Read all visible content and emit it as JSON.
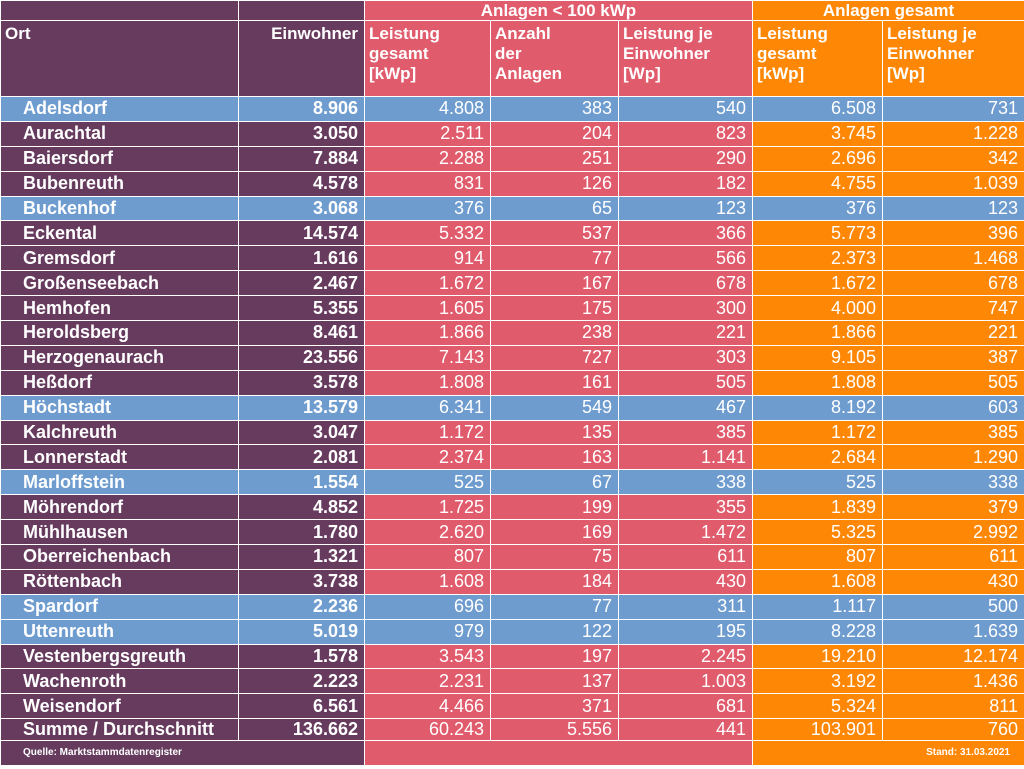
{
  "header": {
    "group_small": "Anlagen < 100 kWp",
    "group_total": "Anlagen gesamt",
    "col_ort": "Ort",
    "col_einwohner": "Einwohner",
    "col_small_leistung": [
      "Leistung",
      "gesamt",
      "[kWp]"
    ],
    "col_small_anzahl": [
      "Anzahl",
      "der",
      "Anlagen"
    ],
    "col_small_jeew": [
      "Leistung je",
      "Einwohner",
      "[Wp]"
    ],
    "col_total_leistung": [
      "Leistung",
      "gesamt",
      "[kWp]"
    ],
    "col_total_jeew": [
      "Leistung je",
      "Einwohner",
      "[Wp]"
    ]
  },
  "colors": {
    "left": "#663b5e",
    "small": "#e05b6c",
    "total": "#ff8706",
    "highlight": "#6e9ccf"
  },
  "rows": [
    {
      "ort": "Adelsdorf",
      "einwohner": "8.906",
      "s_leistung": "4.808",
      "s_anzahl": "383",
      "s_je": "540",
      "t_leistung": "6.508",
      "t_je": "731",
      "highlight": true
    },
    {
      "ort": "Aurachtal",
      "einwohner": "3.050",
      "s_leistung": "2.511",
      "s_anzahl": "204",
      "s_je": "823",
      "t_leistung": "3.745",
      "t_je": "1.228",
      "highlight": false
    },
    {
      "ort": "Baiersdorf",
      "einwohner": "7.884",
      "s_leistung": "2.288",
      "s_anzahl": "251",
      "s_je": "290",
      "t_leistung": "2.696",
      "t_je": "342",
      "highlight": false
    },
    {
      "ort": "Bubenreuth",
      "einwohner": "4.578",
      "s_leistung": "831",
      "s_anzahl": "126",
      "s_je": "182",
      "t_leistung": "4.755",
      "t_je": "1.039",
      "highlight": false
    },
    {
      "ort": "Buckenhof",
      "einwohner": "3.068",
      "s_leistung": "376",
      "s_anzahl": "65",
      "s_je": "123",
      "t_leistung": "376",
      "t_je": "123",
      "highlight": true
    },
    {
      "ort": "Eckental",
      "einwohner": "14.574",
      "s_leistung": "5.332",
      "s_anzahl": "537",
      "s_je": "366",
      "t_leistung": "5.773",
      "t_je": "396",
      "highlight": false
    },
    {
      "ort": "Gremsdorf",
      "einwohner": "1.616",
      "s_leistung": "914",
      "s_anzahl": "77",
      "s_je": "566",
      "t_leistung": "2.373",
      "t_je": "1.468",
      "highlight": false
    },
    {
      "ort": "Großenseebach",
      "einwohner": "2.467",
      "s_leistung": "1.672",
      "s_anzahl": "167",
      "s_je": "678",
      "t_leistung": "1.672",
      "t_je": "678",
      "highlight": false
    },
    {
      "ort": "Hemhofen",
      "einwohner": "5.355",
      "s_leistung": "1.605",
      "s_anzahl": "175",
      "s_je": "300",
      "t_leistung": "4.000",
      "t_je": "747",
      "highlight": false
    },
    {
      "ort": "Heroldsberg",
      "einwohner": "8.461",
      "s_leistung": "1.866",
      "s_anzahl": "238",
      "s_je": "221",
      "t_leistung": "1.866",
      "t_je": "221",
      "highlight": false
    },
    {
      "ort": "Herzogenaurach",
      "einwohner": "23.556",
      "s_leistung": "7.143",
      "s_anzahl": "727",
      "s_je": "303",
      "t_leistung": "9.105",
      "t_je": "387",
      "highlight": false
    },
    {
      "ort": "Heßdorf",
      "einwohner": "3.578",
      "s_leistung": "1.808",
      "s_anzahl": "161",
      "s_je": "505",
      "t_leistung": "1.808",
      "t_je": "505",
      "highlight": false
    },
    {
      "ort": "Höchstadt",
      "einwohner": "13.579",
      "s_leistung": "6.341",
      "s_anzahl": "549",
      "s_je": "467",
      "t_leistung": "8.192",
      "t_je": "603",
      "highlight": true
    },
    {
      "ort": "Kalchreuth",
      "einwohner": "3.047",
      "s_leistung": "1.172",
      "s_anzahl": "135",
      "s_je": "385",
      "t_leistung": "1.172",
      "t_je": "385",
      "highlight": false
    },
    {
      "ort": "Lonnerstadt",
      "einwohner": "2.081",
      "s_leistung": "2.374",
      "s_anzahl": "163",
      "s_je": "1.141",
      "t_leistung": "2.684",
      "t_je": "1.290",
      "highlight": false
    },
    {
      "ort": "Marloffstein",
      "einwohner": "1.554",
      "s_leistung": "525",
      "s_anzahl": "67",
      "s_je": "338",
      "t_leistung": "525",
      "t_je": "338",
      "highlight": true
    },
    {
      "ort": "Möhrendorf",
      "einwohner": "4.852",
      "s_leistung": "1.725",
      "s_anzahl": "199",
      "s_je": "355",
      "t_leistung": "1.839",
      "t_je": "379",
      "highlight": false
    },
    {
      "ort": "Mühlhausen",
      "einwohner": "1.780",
      "s_leistung": "2.620",
      "s_anzahl": "169",
      "s_je": "1.472",
      "t_leistung": "5.325",
      "t_je": "2.992",
      "highlight": false
    },
    {
      "ort": "Oberreichenbach",
      "einwohner": "1.321",
      "s_leistung": "807",
      "s_anzahl": "75",
      "s_je": "611",
      "t_leistung": "807",
      "t_je": "611",
      "highlight": false
    },
    {
      "ort": "Röttenbach",
      "einwohner": "3.738",
      "s_leistung": "1.608",
      "s_anzahl": "184",
      "s_je": "430",
      "t_leistung": "1.608",
      "t_je": "430",
      "highlight": false
    },
    {
      "ort": "Spardorf",
      "einwohner": "2.236",
      "s_leistung": "696",
      "s_anzahl": "77",
      "s_je": "311",
      "t_leistung": "1.117",
      "t_je": "500",
      "highlight": true
    },
    {
      "ort": "Uttenreuth",
      "einwohner": "5.019",
      "s_leistung": "979",
      "s_anzahl": "122",
      "s_je": "195",
      "t_leistung": "8.228",
      "t_je": "1.639",
      "highlight": true
    },
    {
      "ort": "Vestenbergsgreuth",
      "einwohner": "1.578",
      "s_leistung": "3.543",
      "s_anzahl": "197",
      "s_je": "2.245",
      "t_leistung": "19.210",
      "t_je": "12.174",
      "highlight": false
    },
    {
      "ort": "Wachenroth",
      "einwohner": "2.223",
      "s_leistung": "2.231",
      "s_anzahl": "137",
      "s_je": "1.003",
      "t_leistung": "3.192",
      "t_je": "1.436",
      "highlight": false
    },
    {
      "ort": "Weisendorf",
      "einwohner": "6.561",
      "s_leistung": "4.466",
      "s_anzahl": "371",
      "s_je": "681",
      "t_leistung": "5.324",
      "t_je": "811",
      "highlight": false
    }
  ],
  "summary": {
    "ort": "Summe / Durchschnitt",
    "einwohner": "136.662",
    "s_leistung": "60.243",
    "s_anzahl": "5.556",
    "s_je": "441",
    "t_leistung": "103.901",
    "t_je": "760"
  },
  "footer": {
    "source": "Quelle: Marktstammdatenregister",
    "stand": "Stand: 31.03.2021"
  }
}
